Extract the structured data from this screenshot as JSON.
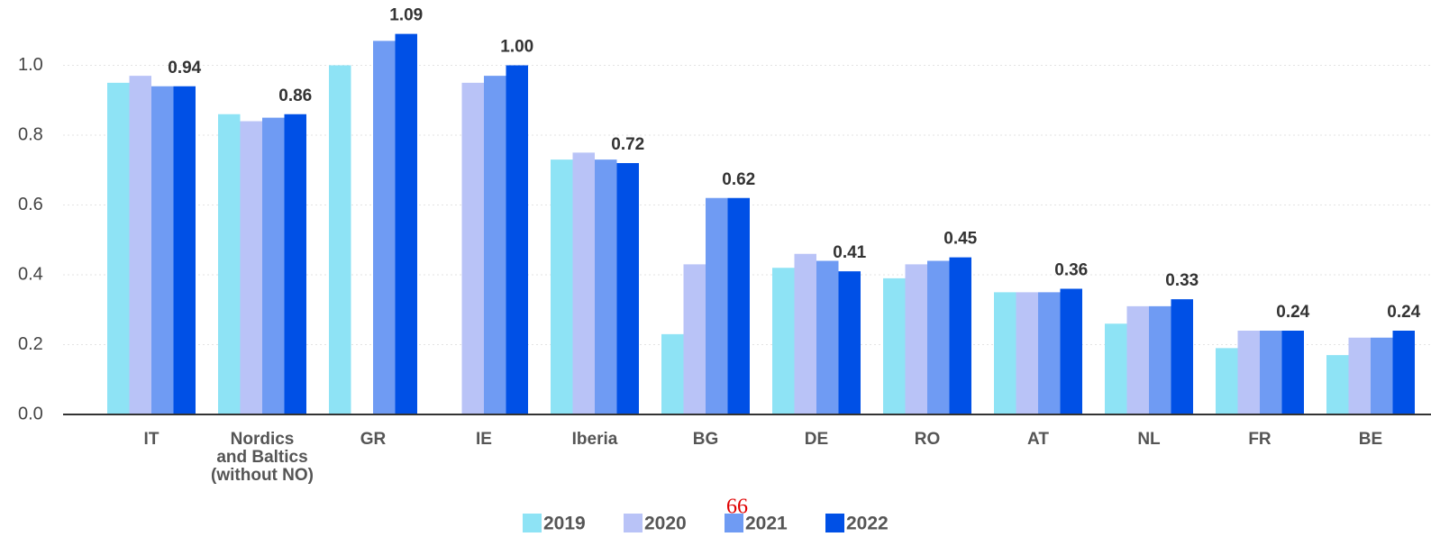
{
  "chart_data": {
    "type": "bar",
    "categories": [
      "IT",
      "Nordics\nand Baltics\n(without NO)",
      "GR",
      "IE",
      "Iberia",
      "BG",
      "DE",
      "RO",
      "AT",
      "NL",
      "FR",
      "BE"
    ],
    "series": [
      {
        "name": "2019",
        "color": "#8ee3f5",
        "values": [
          0.95,
          0.86,
          1.0,
          null,
          0.73,
          0.23,
          0.42,
          0.39,
          0.35,
          0.26,
          0.19,
          0.17
        ]
      },
      {
        "name": "2020",
        "color": "#b9c3f7",
        "values": [
          0.97,
          0.84,
          null,
          0.95,
          0.75,
          0.43,
          0.46,
          0.43,
          0.35,
          0.31,
          0.24,
          0.22
        ]
      },
      {
        "name": "2021",
        "color": "#6f9bf3",
        "values": [
          0.94,
          0.85,
          1.07,
          0.97,
          0.73,
          0.62,
          0.44,
          0.44,
          0.35,
          0.31,
          0.24,
          0.22
        ]
      },
      {
        "name": "2022",
        "color": "#0050e6",
        "values": [
          0.94,
          0.86,
          1.09,
          1.0,
          0.72,
          0.62,
          0.41,
          0.45,
          0.36,
          0.33,
          0.24,
          0.24
        ],
        "value_labels": [
          "0.94",
          "0.86",
          "1.09",
          "1.00",
          "0.72",
          "0.62",
          "0.41",
          "0.45",
          "0.36",
          "0.33",
          "0.24",
          "0.24"
        ]
      }
    ],
    "ylim": [
      0,
      1.18
    ],
    "yticks": [
      {
        "value": 0,
        "label": "0.0"
      },
      0.2,
      0.4,
      0.6,
      0.8,
      {
        "value": 1,
        "label": "1.0"
      }
    ],
    "grid": true,
    "legend": "bottom",
    "annotation": "66"
  }
}
